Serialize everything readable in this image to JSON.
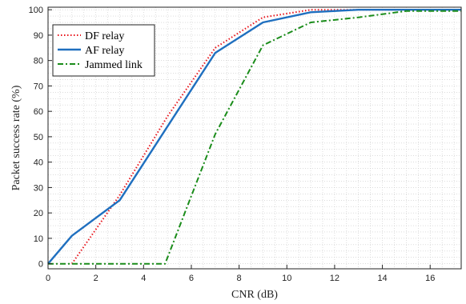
{
  "chart_data": {
    "type": "line",
    "xlabel": "CNR (dB)",
    "ylabel": "Packet success rate (%)",
    "xlim": [
      0,
      17.3
    ],
    "ylim": [
      -2,
      101
    ],
    "xticks": [
      0,
      2,
      4,
      6,
      8,
      10,
      12,
      14,
      16
    ],
    "yticks": [
      0,
      10,
      20,
      30,
      40,
      50,
      60,
      70,
      80,
      90,
      100
    ],
    "grid": "minor dotted",
    "legend_position": "top-left",
    "series": [
      {
        "name": "DF relay",
        "color": "#e8141b",
        "style": "dotted",
        "x": [
          1,
          3,
          5,
          7,
          9,
          11,
          13,
          15,
          17.3
        ],
        "y": [
          0,
          27,
          58,
          85,
          97,
          100,
          100,
          100,
          100
        ]
      },
      {
        "name": "AF relay",
        "color": "#1f6fbf",
        "style": "solid",
        "x": [
          0,
          1,
          3,
          5,
          7,
          9,
          11,
          13,
          15,
          17.3
        ],
        "y": [
          0,
          11,
          25,
          54,
          83,
          95,
          99,
          100,
          100,
          100
        ]
      },
      {
        "name": "Jammed link",
        "color": "#1a8c1a",
        "style": "dashdot",
        "x": [
          0,
          1,
          3,
          4.9,
          7,
          9,
          11,
          13,
          15,
          17.3
        ],
        "y": [
          0,
          0,
          0,
          0,
          51,
          86,
          95,
          97,
          99.5,
          99.5
        ]
      }
    ]
  }
}
